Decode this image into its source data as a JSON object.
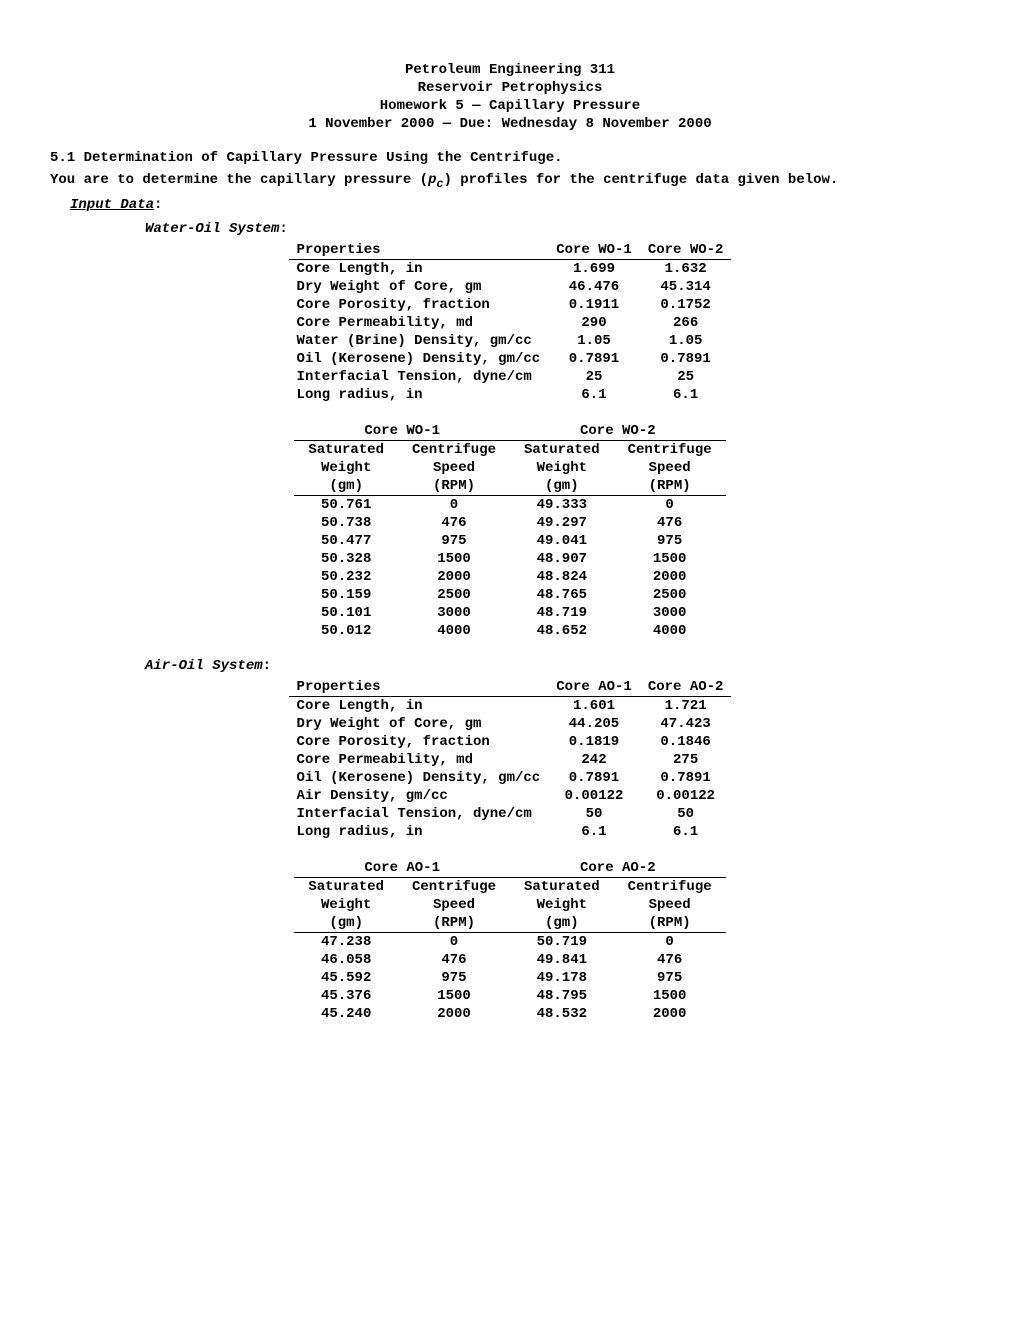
{
  "header": {
    "line1": "Petroleum Engineering 311",
    "line2": "Reservoir Petrophysics",
    "line3": "Homework 5 — Capillary Pressure",
    "line4": "1 November 2000 — Due: Wednesday 8 November 2000"
  },
  "problem": {
    "number": "5.1",
    "title": "Determination of Capillary Pressure Using the Centrifuge.",
    "intro_a": "You are to determine the capillary pressure (",
    "intro_var": "p",
    "intro_sub": "c",
    "intro_b": ") profiles for the centrifuge data given below."
  },
  "labels": {
    "input_data": "Input Data",
    "water_oil": "Water-Oil System",
    "air_oil": "Air-Oil System",
    "properties": "Properties",
    "sat_weight_l1": "Saturated",
    "sat_weight_l2": "Weight",
    "sat_weight_l3": "(gm)",
    "speed_l1": "Centrifuge",
    "speed_l2": "Speed",
    "speed_l3": "(RPM)"
  },
  "water_oil": {
    "cols": [
      "Core WO-1",
      "Core WO-2"
    ],
    "props": [
      {
        "label": "Core Length, in",
        "c1": "1.699",
        "c2": "1.632"
      },
      {
        "label": "Dry Weight of Core, gm",
        "c1": "46.476",
        "c2": "45.314"
      },
      {
        "label": "Core Porosity, fraction",
        "c1": "0.1911",
        "c2": "0.1752"
      },
      {
        "label": "Core Permeability, md",
        "c1": "290",
        "c2": "266"
      },
      {
        "label": "Water (Brine) Density, gm/cc",
        "c1": "1.05",
        "c2": "1.05"
      },
      {
        "label": "Oil (Kerosene) Density, gm/cc",
        "c1": "0.7891",
        "c2": "0.7891"
      },
      {
        "label": "Interfacial Tension, dyne/cm",
        "c1": "25",
        "c2": "25"
      },
      {
        "label": "Long radius, in",
        "c1": "6.1",
        "c2": "6.1"
      }
    ],
    "data_cols": [
      "Core WO-1",
      "Core WO-2"
    ],
    "rows": [
      {
        "w1": "50.761",
        "r1": "0",
        "w2": "49.333",
        "r2": "0"
      },
      {
        "w1": "50.738",
        "r1": "476",
        "w2": "49.297",
        "r2": "476"
      },
      {
        "w1": "50.477",
        "r1": "975",
        "w2": "49.041",
        "r2": "975"
      },
      {
        "w1": "50.328",
        "r1": "1500",
        "w2": "48.907",
        "r2": "1500"
      },
      {
        "w1": "50.232",
        "r1": "2000",
        "w2": "48.824",
        "r2": "2000"
      },
      {
        "w1": "50.159",
        "r1": "2500",
        "w2": "48.765",
        "r2": "2500"
      },
      {
        "w1": "50.101",
        "r1": "3000",
        "w2": "48.719",
        "r2": "3000"
      },
      {
        "w1": "50.012",
        "r1": "4000",
        "w2": "48.652",
        "r2": "4000"
      }
    ]
  },
  "air_oil": {
    "cols": [
      "Core AO-1",
      "Core AO-2"
    ],
    "props": [
      {
        "label": "Core Length, in",
        "c1": "1.601",
        "c2": "1.721"
      },
      {
        "label": "Dry Weight of Core, gm",
        "c1": "44.205",
        "c2": "47.423"
      },
      {
        "label": "Core Porosity, fraction",
        "c1": "0.1819",
        "c2": "0.1846"
      },
      {
        "label": "Core Permeability, md",
        "c1": "242",
        "c2": "275"
      },
      {
        "label": "Oil (Kerosene) Density, gm/cc",
        "c1": "0.7891",
        "c2": "0.7891"
      },
      {
        "label": "Air Density, gm/cc",
        "c1": "0.00122",
        "c2": "0.00122"
      },
      {
        "label": "Interfacial Tension, dyne/cm",
        "c1": "50",
        "c2": "50"
      },
      {
        "label": "Long radius, in",
        "c1": "6.1",
        "c2": "6.1"
      }
    ],
    "data_cols": [
      "Core AO-1",
      "Core AO-2"
    ],
    "rows": [
      {
        "w1": "47.238",
        "r1": "0",
        "w2": "50.719",
        "r2": "0"
      },
      {
        "w1": "46.058",
        "r1": "476",
        "w2": "49.841",
        "r2": "476"
      },
      {
        "w1": "45.592",
        "r1": "975",
        "w2": "49.178",
        "r2": "975"
      },
      {
        "w1": "45.376",
        "r1": "1500",
        "w2": "48.795",
        "r2": "1500"
      },
      {
        "w1": "45.240",
        "r1": "2000",
        "w2": "48.532",
        "r2": "2000"
      }
    ]
  }
}
